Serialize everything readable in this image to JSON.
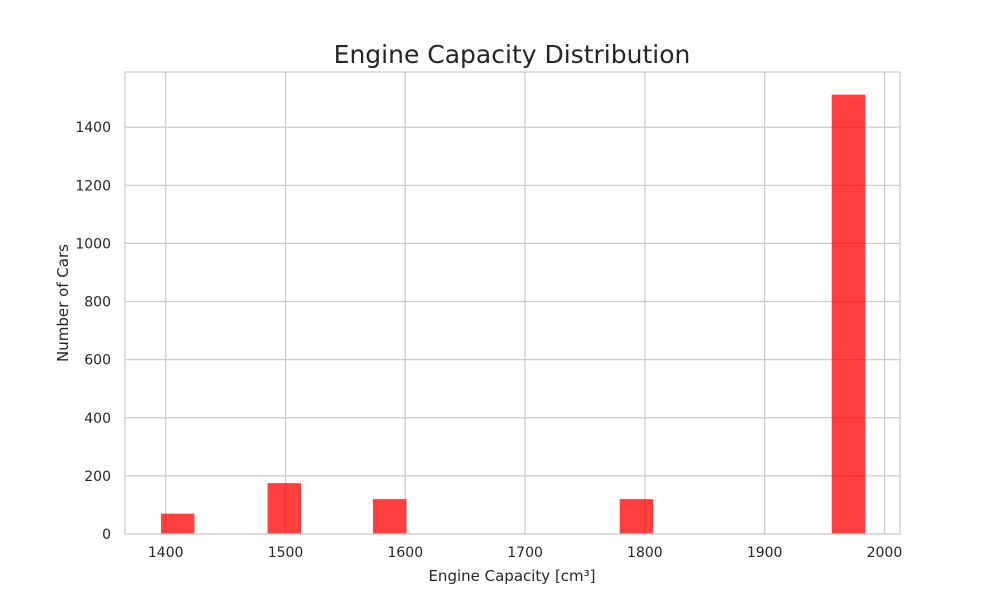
{
  "chart_data": {
    "type": "bar",
    "title": "Engine Capacity Distribution",
    "xlabel": "Engine Capacity [cm³]",
    "ylabel": "Number of Cars",
    "xlim": [
      1366,
      2013
    ],
    "ylim": [
      0,
      1590
    ],
    "xticks": [
      1400,
      1500,
      1600,
      1700,
      1800,
      1900,
      2000
    ],
    "yticks": [
      0,
      200,
      400,
      600,
      800,
      1000,
      1200,
      1400
    ],
    "bin_width": 28,
    "bars": [
      {
        "x": 1396,
        "value": 70
      },
      {
        "x": 1485,
        "value": 175
      },
      {
        "x": 1573,
        "value": 120
      },
      {
        "x": 1779,
        "value": 120
      },
      {
        "x": 1956,
        "value": 1512
      }
    ],
    "bar_color": "#ff0000",
    "bar_opacity": 0.75,
    "grid": true,
    "style": "whitegrid"
  }
}
